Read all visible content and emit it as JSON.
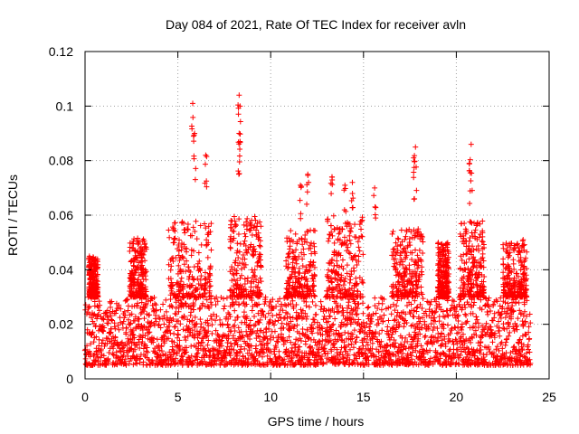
{
  "chart_data": {
    "type": "scatter",
    "title": "Day 084 of 2021, Rate Of TEC Index for receiver avln",
    "xlabel": "GPS time / hours",
    "ylabel": "ROTI / TECUs",
    "xlim": [
      0,
      25
    ],
    "ylim": [
      0,
      0.12
    ],
    "x_ticks": [
      "0",
      "5",
      "10",
      "15",
      "20",
      "25"
    ],
    "y_ticks": [
      "0",
      "0.02",
      "0.04",
      "0.06",
      "0.08",
      "0.1",
      "0.12"
    ],
    "grid": true,
    "marker": "plus",
    "color": "#ff0000",
    "x_range_observed": [
      0,
      24
    ],
    "baseline_band": [
      0.005,
      0.03
    ],
    "peaks": [
      {
        "x": 5.8,
        "y": 0.101
      },
      {
        "x": 5.9,
        "y": 0.09
      },
      {
        "x": 6.5,
        "y": 0.082
      },
      {
        "x": 8.3,
        "y": 0.104
      },
      {
        "x": 8.35,
        "y": 0.1
      },
      {
        "x": 8.3,
        "y": 0.09
      },
      {
        "x": 11.6,
        "y": 0.071
      },
      {
        "x": 12.0,
        "y": 0.075
      },
      {
        "x": 13.3,
        "y": 0.074
      },
      {
        "x": 14.0,
        "y": 0.071
      },
      {
        "x": 14.4,
        "y": 0.072
      },
      {
        "x": 15.6,
        "y": 0.07
      },
      {
        "x": 17.7,
        "y": 0.081
      },
      {
        "x": 17.8,
        "y": 0.085
      },
      {
        "x": 20.8,
        "y": 0.086
      },
      {
        "x": 20.7,
        "y": 0.079
      },
      {
        "x": 23.6,
        "y": 0.051
      }
    ]
  }
}
